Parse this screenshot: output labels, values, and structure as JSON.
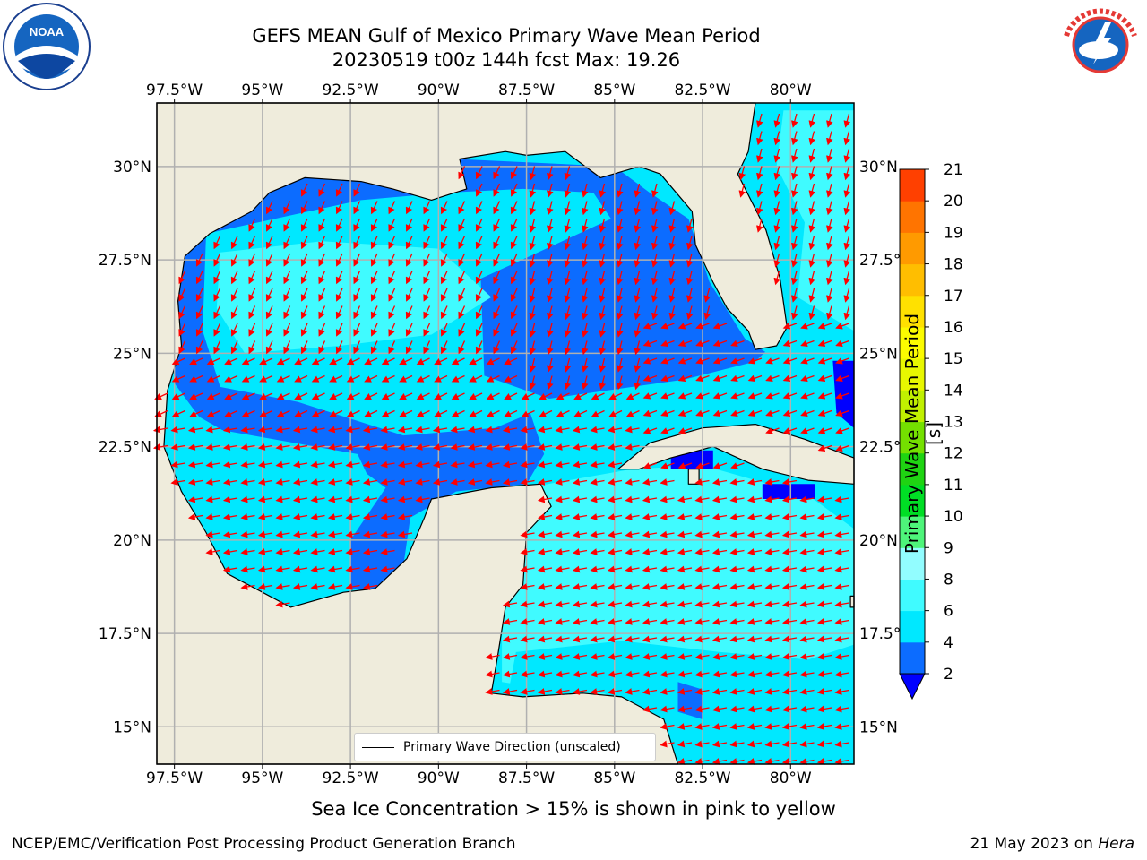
{
  "title": {
    "line1": "GEFS MEAN Gulf of Mexico Primary Wave Mean Period",
    "line2": "20230519 t00z 144h fcst   Max: 19.26"
  },
  "logos": {
    "left": "noaa-logo",
    "right": "nws-logo"
  },
  "map": {
    "lon_labels": [
      "97.5°W",
      "95°W",
      "92.5°W",
      "90°W",
      "87.5°W",
      "85°W",
      "82.5°W",
      "80°W"
    ],
    "lon_values": [
      -97.5,
      -95,
      -92.5,
      -90,
      -87.5,
      -85,
      -82.5,
      -80
    ],
    "lat_labels": [
      "30°N",
      "27.5°N",
      "25°N",
      "22.5°N",
      "20°N",
      "17.5°N",
      "15°N"
    ],
    "lat_values": [
      30,
      27.5,
      25,
      22.5,
      20,
      17.5,
      15
    ],
    "extent": {
      "lon": [
        -98,
        -78.2
      ],
      "lat": [
        14.0,
        31.7
      ]
    },
    "land_color": "#efecdc",
    "grid": true,
    "arrow_color": "#ff0000"
  },
  "legend": {
    "label": "Primary Wave Direction (unscaled)"
  },
  "colorbar": {
    "label": "Primary Wave Mean Period [s]",
    "ticks": [
      "2",
      "4",
      "6",
      "8",
      "9",
      "10",
      "11",
      "12",
      "13",
      "14",
      "15",
      "16",
      "17",
      "18",
      "19",
      "20",
      "21"
    ],
    "colors": [
      "#0c6cff",
      "#00e8ff",
      "#40fbff",
      "#92fdff",
      "#4ef57a",
      "#00de25",
      "#1fd412",
      "#74e000",
      "#c0f000",
      "#e8f700",
      "#fbfb00",
      "#ffe100",
      "#ffbe00",
      "#ff9a00",
      "#ff7400",
      "#ff4000"
    ],
    "under_color": "#0000ff"
  },
  "ice_note": "Sea Ice Concentration > 15% is shown in pink to yellow",
  "footer": {
    "left": "NCEP/EMC/Verification Post Processing Product Generation Branch",
    "right_date": "21 May 2023 on",
    "right_host": "Hera"
  }
}
